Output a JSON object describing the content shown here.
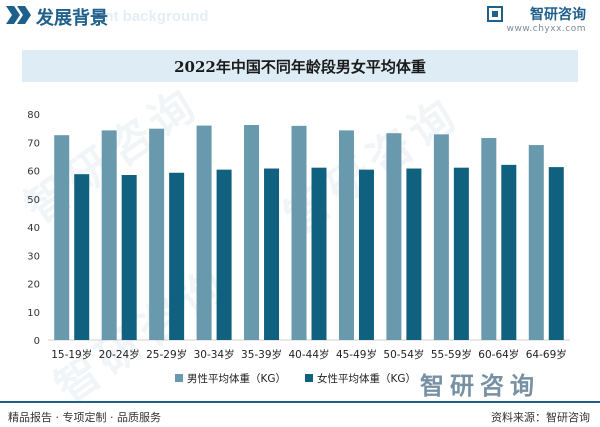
{
  "header": {
    "section_title": "发展背景",
    "section_subtitle": "ent background",
    "brand_name": "智研咨询",
    "brand_url": "www.chyxx.com"
  },
  "watermark_text": "智研咨询",
  "chart_data": {
    "type": "bar",
    "title": "2022年中国不同年龄段男女平均体重",
    "categories": [
      "15-19岁",
      "20-24岁",
      "25-29岁",
      "30-34岁",
      "35-39岁",
      "40-44岁",
      "45-49岁",
      "50-54岁",
      "55-59岁",
      "60-64岁",
      "64-69岁"
    ],
    "series": [
      {
        "name": "男性平均体重（KG）",
        "color": "#6899ad",
        "values": [
          72.5,
          74.2,
          74.8,
          75.9,
          76.1,
          75.8,
          74.2,
          73.2,
          72.8,
          71.5,
          69.0
        ]
      },
      {
        "name": "女性平均体重（KG）",
        "color": "#10607f",
        "values": [
          58.7,
          58.4,
          59.2,
          60.3,
          60.7,
          61.0,
          60.3,
          60.7,
          61.0,
          62.0,
          61.2
        ]
      }
    ],
    "ylim": [
      0,
      80
    ],
    "yticks": [
      0,
      10,
      20,
      30,
      40,
      50,
      60,
      70,
      80
    ],
    "grid": false,
    "legend": "bottom"
  },
  "footer": {
    "left_text": "精品报告 · 专项定制 · 品质服务",
    "right_text": "资料来源：智研咨询",
    "logo_text": "智研咨询"
  }
}
